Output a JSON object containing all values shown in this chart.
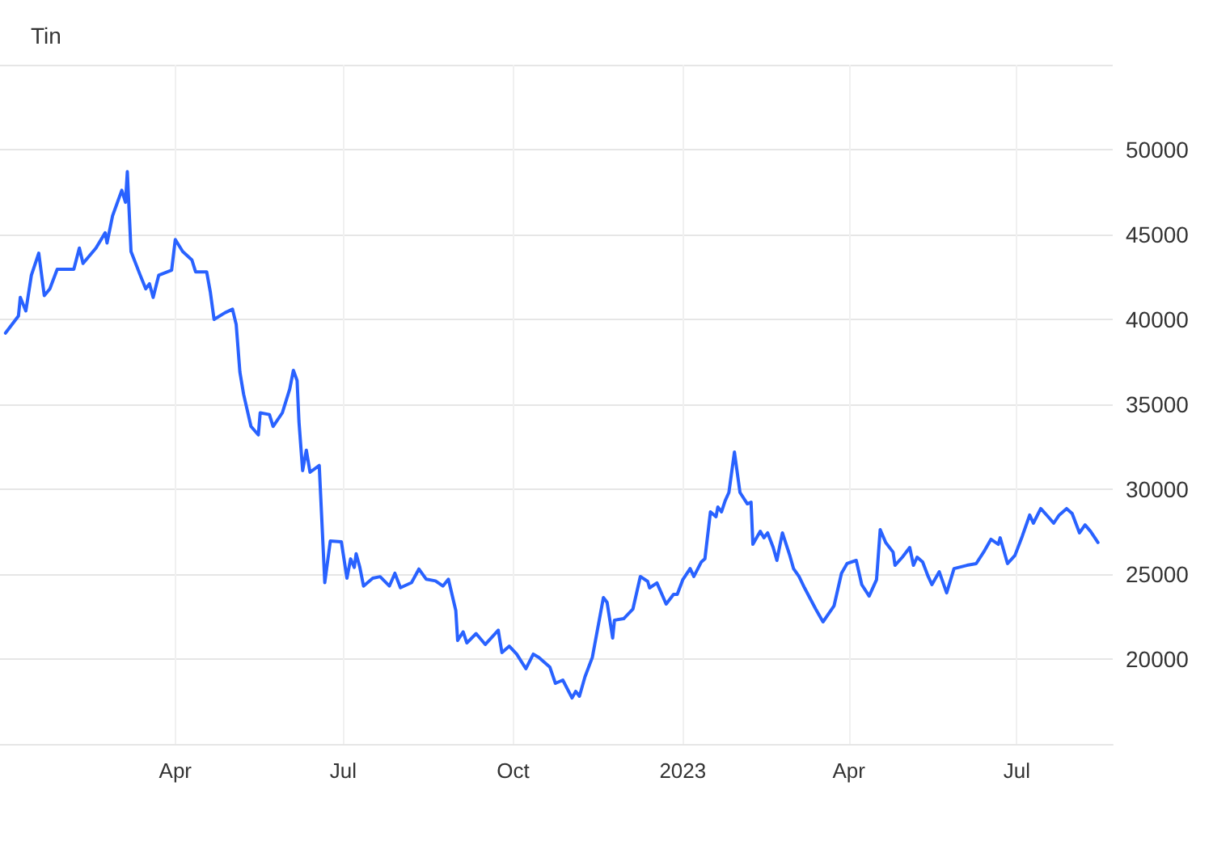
{
  "chart_data": {
    "type": "line",
    "title": "Tin",
    "x": [
      "2021-12-30",
      "2022-01-06",
      "2022-01-07",
      "2022-01-10",
      "2022-01-13",
      "2022-01-17",
      "2022-01-20",
      "2022-01-23",
      "2022-01-27",
      "2022-02-05",
      "2022-02-08",
      "2022-02-10",
      "2022-02-17",
      "2022-02-22",
      "2022-02-23",
      "2022-02-26",
      "2022-03-03",
      "2022-03-05",
      "2022-03-06",
      "2022-03-08",
      "2022-03-13",
      "2022-03-16",
      "2022-03-18",
      "2022-03-20",
      "2022-03-23",
      "2022-03-30",
      "2022-04-01",
      "2022-04-05",
      "2022-04-10",
      "2022-04-12",
      "2022-04-18",
      "2022-04-20",
      "2022-04-22",
      "2022-04-28",
      "2022-05-02",
      "2022-05-04",
      "2022-05-06",
      "2022-05-08",
      "2022-05-12",
      "2022-05-16",
      "2022-05-17",
      "2022-05-22",
      "2022-05-24",
      "2022-05-29",
      "2022-06-02",
      "2022-06-04",
      "2022-06-06",
      "2022-06-07",
      "2022-06-09",
      "2022-06-11",
      "2022-06-13",
      "2022-06-18",
      "2022-06-21",
      "2022-06-24",
      "2022-06-30",
      "2022-07-03",
      "2022-07-05",
      "2022-07-07",
      "2022-07-08",
      "2022-07-10",
      "2022-07-12",
      "2022-07-17",
      "2022-07-21",
      "2022-07-26",
      "2022-07-29",
      "2022-08-01",
      "2022-08-07",
      "2022-08-11",
      "2022-08-15",
      "2022-08-20",
      "2022-08-24",
      "2022-08-27",
      "2022-08-31",
      "2022-09-01",
      "2022-09-04",
      "2022-09-06",
      "2022-09-11",
      "2022-09-16",
      "2022-09-23",
      "2022-09-25",
      "2022-09-29",
      "2022-10-03",
      "2022-10-08",
      "2022-10-12",
      "2022-10-15",
      "2022-10-21",
      "2022-10-24",
      "2022-10-28",
      "2022-11-02",
      "2022-11-04",
      "2022-11-06",
      "2022-11-09",
      "2022-11-13",
      "2022-11-19",
      "2022-11-21",
      "2022-11-24",
      "2022-11-25",
      "2022-11-30",
      "2022-12-05",
      "2022-12-09",
      "2022-12-13",
      "2022-12-14",
      "2022-12-18",
      "2022-12-23",
      "2022-12-27",
      "2022-12-29",
      "2023-01-01",
      "2023-01-05",
      "2023-01-07",
      "2023-01-11",
      "2023-01-13",
      "2023-01-16",
      "2023-01-19",
      "2023-01-20",
      "2023-01-22",
      "2023-01-24",
      "2023-01-26",
      "2023-01-29",
      "2023-02-01",
      "2023-02-05",
      "2023-02-07",
      "2023-02-08",
      "2023-02-12",
      "2023-02-14",
      "2023-02-16",
      "2023-02-19",
      "2023-02-21",
      "2023-02-24",
      "2023-02-28",
      "2023-03-02",
      "2023-03-05",
      "2023-03-08",
      "2023-03-14",
      "2023-03-18",
      "2023-03-24",
      "2023-03-28",
      "2023-03-31",
      "2023-04-05",
      "2023-04-08",
      "2023-04-12",
      "2023-04-16",
      "2023-04-18",
      "2023-04-21",
      "2023-04-25",
      "2023-04-26",
      "2023-04-30",
      "2023-05-04",
      "2023-05-06",
      "2023-05-08",
      "2023-05-11",
      "2023-05-14",
      "2023-05-16",
      "2023-05-20",
      "2023-05-24",
      "2023-05-28",
      "2023-06-04",
      "2023-06-09",
      "2023-06-13",
      "2023-06-17",
      "2023-06-21",
      "2023-06-22",
      "2023-06-26",
      "2023-06-30",
      "2023-07-04",
      "2023-07-08",
      "2023-07-10",
      "2023-07-14",
      "2023-07-18",
      "2023-07-21",
      "2023-07-24",
      "2023-07-28",
      "2023-07-31",
      "2023-08-04",
      "2023-08-07",
      "2023-08-10",
      "2023-08-14"
    ],
    "series": [
      {
        "color": "#2962ff",
        "values": [
          39200,
          40200,
          41300,
          40500,
          42600,
          43900,
          41400,
          41800,
          42950,
          42950,
          44200,
          43300,
          44200,
          45100,
          44500,
          46100,
          47600,
          46900,
          48700,
          44000,
          42600,
          41800,
          42100,
          41300,
          42600,
          42900,
          44700,
          44000,
          43500,
          42800,
          42800,
          41600,
          40000,
          40400,
          40600,
          39700,
          36900,
          35600,
          33700,
          33200,
          34500,
          34400,
          33700,
          34500,
          35900,
          37000,
          36400,
          34000,
          31100,
          32300,
          31000,
          31400,
          24500,
          26950,
          26900,
          24760,
          25900,
          25400,
          26200,
          25400,
          24300,
          24760,
          24850,
          24300,
          25050,
          24200,
          24500,
          25300,
          24700,
          24600,
          24300,
          24700,
          22860,
          21100,
          21600,
          20950,
          21500,
          20860,
          21700,
          20380,
          20760,
          20290,
          19430,
          20290,
          20100,
          19520,
          18570,
          18760,
          17710,
          18100,
          17810,
          18950,
          20100,
          23620,
          23330,
          21240,
          22290,
          22380,
          22950,
          24860,
          24570,
          24190,
          24480,
          23240,
          23810,
          23810,
          24670,
          25330,
          24860,
          25710,
          25900,
          28670,
          28380,
          28950,
          28670,
          29330,
          29810,
          32190,
          29810,
          29140,
          29240,
          26760,
          27520,
          27140,
          27430,
          26570,
          25810,
          27430,
          26100,
          25330,
          24860,
          24190,
          22950,
          22190,
          23140,
          25050,
          25620,
          25810,
          24380,
          23710,
          24670,
          27620,
          26860,
          26290,
          25520,
          26000,
          26570,
          25520,
          26000,
          25710,
          24860,
          24380,
          25140,
          23900,
          25330,
          25520,
          25620,
          26290,
          27050,
          26760,
          27140,
          25620,
          26100,
          27240,
          28480,
          28000,
          28860,
          28380,
          28000,
          28480,
          28860,
          28570,
          27430,
          27900,
          27520,
          26860
        ]
      }
    ],
    "xlim": [
      "2021-12-27",
      "2023-08-22"
    ],
    "xticks": [
      {
        "value": "2022-04-01",
        "label": "Apr"
      },
      {
        "value": "2022-07-01",
        "label": "Jul"
      },
      {
        "value": "2022-10-01",
        "label": "Oct"
      },
      {
        "value": "2023-01-01",
        "label": "2023"
      },
      {
        "value": "2023-04-01",
        "label": "Apr"
      },
      {
        "value": "2023-07-01",
        "label": "Jul"
      }
    ],
    "ylim": [
      15000,
      55000
    ],
    "yticks": [
      20000,
      25000,
      30000,
      35000,
      40000,
      45000,
      50000,
      {
        "value": 55000,
        "label": null
      }
    ],
    "grid": true,
    "marker": "none",
    "line_style": "solid"
  }
}
